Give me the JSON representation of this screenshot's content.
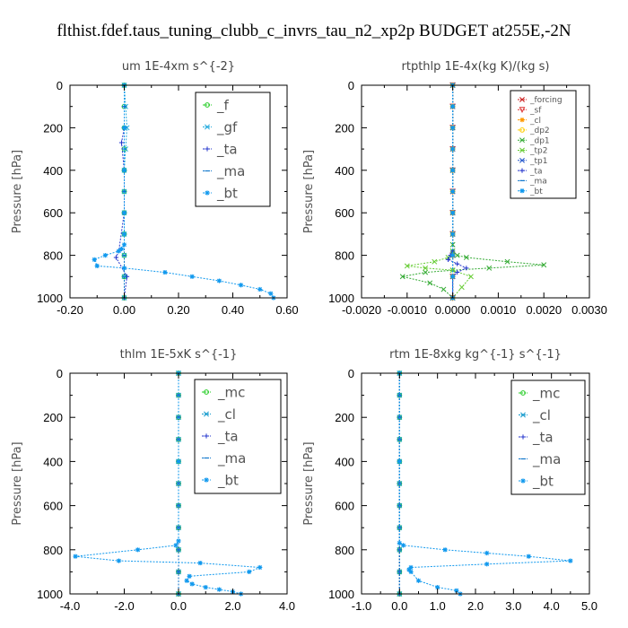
{
  "title": "flthist.fdef.taus_tuning_clubb_c_invrs_tau_n2_xp2p  BUDGET at255E,-2N",
  "chart_data": [
    {
      "type": "line",
      "title": "um  1E-4xm s^{-2}",
      "ylabel": "Pressure [hPa]",
      "xlim": [
        -0.2,
        0.6
      ],
      "ylim": [
        1000,
        0
      ],
      "xticks": [
        "-0.20",
        "0.00",
        "0.20",
        "0.40",
        "0.60"
      ],
      "yticks": [
        "0",
        "200",
        "400",
        "600",
        "800",
        "1000"
      ],
      "legend_position": "top-right",
      "series": [
        {
          "name": "_f",
          "color": "#22cc22",
          "marker": "o",
          "x": [
            0.0,
            0.0,
            0.0,
            0.0,
            0.0,
            0.0,
            0.0,
            0.0,
            0.0,
            0.0,
            0.0
          ],
          "y": [
            0,
            100,
            200,
            300,
            400,
            500,
            600,
            700,
            800,
            900,
            1000
          ]
        },
        {
          "name": "_gf",
          "color": "#22aadd",
          "marker": "x",
          "x": [
            0.0,
            0.005,
            0.01,
            0.005,
            0.0,
            0.0,
            0.0,
            0.0,
            0.0,
            0.0,
            0.0
          ],
          "y": [
            0,
            100,
            200,
            300,
            400,
            500,
            600,
            700,
            800,
            900,
            1000
          ]
        },
        {
          "name": "_ta",
          "color": "#2233cc",
          "marker": "+",
          "x": [
            0.0,
            0.0,
            0.0,
            -0.01,
            0.0,
            0.0,
            0.0,
            -0.02,
            -0.03,
            0.01,
            0.0
          ],
          "y": [
            0,
            100,
            200,
            270,
            400,
            500,
            600,
            780,
            810,
            900,
            1000
          ]
        },
        {
          "name": "_ma",
          "color": "#1177cc",
          "marker": "-",
          "x": [
            0.0,
            0.0,
            0.0,
            0.0,
            0.0,
            0.0,
            0.0,
            0.0,
            0.0,
            0.0,
            0.0
          ],
          "y": [
            0,
            100,
            200,
            300,
            400,
            500,
            600,
            700,
            800,
            900,
            1000
          ]
        },
        {
          "name": "_bt",
          "color": "#1199ee",
          "marker": "*",
          "x": [
            0.0,
            0.0,
            0.0,
            0.0,
            0.0,
            0.0,
            -0.01,
            -0.02,
            -0.07,
            -0.11,
            -0.1,
            0.0,
            0.15,
            0.25,
            0.35,
            0.43,
            0.5,
            0.54,
            0.55
          ],
          "y": [
            0,
            200,
            400,
            600,
            700,
            750,
            770,
            780,
            800,
            820,
            850,
            860,
            880,
            900,
            920,
            940,
            960,
            980,
            1000
          ]
        }
      ]
    },
    {
      "type": "line",
      "title": "rtpthlp  1E-4x(kg K)/(kg s)",
      "ylabel": "Pressure [hPa]",
      "xlim": [
        -0.002,
        0.003
      ],
      "ylim": [
        1000,
        0
      ],
      "xticks": [
        "-0.0020",
        "-0.0010",
        "0.0000",
        "0.0010",
        "0.0020",
        "0.0030"
      ],
      "yticks": [
        "0",
        "200",
        "400",
        "600",
        "800",
        "1000"
      ],
      "legend_position": "top-right",
      "series": [
        {
          "name": "_forcing",
          "color": "#cc2222",
          "marker": "x",
          "x": [
            0,
            0,
            0,
            0,
            0,
            0,
            0,
            0,
            0,
            0,
            0
          ],
          "y": [
            0,
            100,
            200,
            300,
            400,
            500,
            600,
            700,
            800,
            900,
            1000
          ]
        },
        {
          "name": "_sf",
          "color": "#dd3333",
          "marker": "v",
          "x": [
            0,
            0,
            0,
            0,
            0,
            0,
            0,
            0,
            0,
            0,
            0
          ],
          "y": [
            0,
            100,
            200,
            300,
            400,
            500,
            600,
            700,
            800,
            900,
            1000
          ]
        },
        {
          "name": "_cl",
          "color": "#ff9900",
          "marker": "*",
          "x": [
            0,
            0,
            0,
            0,
            0,
            0,
            0,
            0,
            0,
            0,
            0
          ],
          "y": [
            0,
            100,
            200,
            300,
            400,
            500,
            600,
            700,
            800,
            900,
            1000
          ]
        },
        {
          "name": "_dp2",
          "color": "#ffcc00",
          "marker": "o",
          "x": [
            0,
            0,
            0,
            0,
            0,
            0,
            0,
            0,
            0,
            0,
            0
          ],
          "y": [
            0,
            100,
            200,
            300,
            400,
            500,
            600,
            700,
            800,
            900,
            1000
          ]
        },
        {
          "name": "_dp1",
          "color": "#33aa33",
          "marker": "x",
          "x": [
            0.0,
            0.0,
            0.0,
            0.0,
            0.0,
            0.0,
            0.0,
            0.0001,
            0.0003,
            0.0012,
            0.002,
            0.0008,
            0.0,
            -0.0006,
            -0.0011,
            -0.0005,
            -0.0002,
            0.0
          ],
          "y": [
            0,
            200,
            400,
            600,
            700,
            750,
            780,
            800,
            810,
            830,
            845,
            860,
            870,
            880,
            900,
            930,
            960,
            1000
          ]
        },
        {
          "name": "_tp2",
          "color": "#66cc33",
          "marker": "x",
          "x": [
            0.0,
            0.0,
            0.0,
            0.0,
            -0.0001,
            -0.0004,
            -0.001,
            -0.0006,
            0.0,
            0.0004,
            0.0002,
            0.0
          ],
          "y": [
            0,
            400,
            700,
            790,
            810,
            830,
            850,
            860,
            870,
            900,
            950,
            1000
          ]
        },
        {
          "name": "_tp1",
          "color": "#2255cc",
          "marker": "x",
          "x": [
            0,
            0,
            0,
            0,
            0,
            0,
            0,
            0,
            0,
            0,
            0
          ],
          "y": [
            0,
            100,
            200,
            300,
            400,
            500,
            600,
            700,
            800,
            900,
            1000
          ]
        },
        {
          "name": "_ta",
          "color": "#2233cc",
          "marker": "+",
          "x": [
            0.0,
            0.0,
            0.0,
            -5e-05,
            -0.0001,
            0.0001,
            0.0003,
            0.0001,
            0.0,
            0.0
          ],
          "y": [
            0,
            400,
            780,
            800,
            820,
            840,
            860,
            880,
            900,
            1000
          ]
        },
        {
          "name": "_ma",
          "color": "#1177cc",
          "marker": "-",
          "x": [
            0,
            0,
            0,
            0,
            0,
            0,
            0,
            0,
            0,
            0,
            0
          ],
          "y": [
            0,
            100,
            200,
            300,
            400,
            500,
            600,
            700,
            800,
            900,
            1000
          ]
        },
        {
          "name": "_bt",
          "color": "#1199ee",
          "marker": "*",
          "x": [
            0,
            0,
            0,
            0,
            0,
            0,
            0,
            0,
            0,
            0,
            0
          ],
          "y": [
            0,
            100,
            200,
            300,
            400,
            500,
            600,
            700,
            800,
            900,
            1000
          ]
        }
      ]
    },
    {
      "type": "line",
      "title": "thlm  1E-5xK s^{-1}",
      "ylabel": "Pressure [hPa]",
      "xlim": [
        -4.0,
        4.0
      ],
      "ylim": [
        1000,
        0
      ],
      "xticks": [
        "-4.0",
        "-2.0",
        "0.0",
        "2.0",
        "4.0"
      ],
      "yticks": [
        "0",
        "200",
        "400",
        "600",
        "800",
        "1000"
      ],
      "legend_position": "top-right",
      "series": [
        {
          "name": "_mc",
          "color": "#22cc22",
          "marker": "o",
          "x": [
            0,
            0,
            0,
            0,
            0,
            0,
            0,
            0,
            0,
            0,
            0
          ],
          "y": [
            0,
            100,
            200,
            300,
            400,
            500,
            600,
            700,
            800,
            900,
            1000
          ]
        },
        {
          "name": "_cl",
          "color": "#1199cc",
          "marker": "x",
          "x": [
            0,
            0,
            0,
            0,
            0,
            0,
            0,
            0,
            0,
            0,
            0
          ],
          "y": [
            0,
            100,
            200,
            300,
            400,
            500,
            600,
            700,
            800,
            900,
            1000
          ]
        },
        {
          "name": "_ta",
          "color": "#2233cc",
          "marker": "+",
          "x": [
            0,
            0,
            0,
            0,
            0,
            0,
            0,
            0,
            0,
            0,
            0
          ],
          "y": [
            0,
            100,
            200,
            300,
            400,
            500,
            600,
            700,
            800,
            900,
            1000
          ]
        },
        {
          "name": "_ma",
          "color": "#1177cc",
          "marker": "-",
          "x": [
            0,
            0,
            0,
            0,
            0,
            0,
            0,
            0,
            0,
            0,
            0
          ],
          "y": [
            0,
            100,
            200,
            300,
            400,
            500,
            600,
            700,
            800,
            900,
            1000
          ]
        },
        {
          "name": "_bt",
          "color": "#1199ee",
          "marker": "*",
          "x": [
            0.0,
            0.0,
            0.0,
            -0.1,
            -1.5,
            -3.8,
            -2.2,
            0.8,
            3.0,
            2.6,
            0.4,
            0.3,
            0.5,
            1.0,
            1.5,
            2.0,
            2.3
          ],
          "y": [
            0,
            400,
            760,
            780,
            800,
            830,
            850,
            860,
            880,
            900,
            920,
            940,
            955,
            970,
            980,
            990,
            1000
          ]
        }
      ]
    },
    {
      "type": "line",
      "title": "rtm  1E-8xkg kg^{-1} s^{-1}",
      "ylabel": "Pressure [hPa]",
      "xlim": [
        -1.0,
        5.0
      ],
      "ylim": [
        1000,
        0
      ],
      "xticks": [
        "-1.0",
        "0.0",
        "1.0",
        "2.0",
        "3.0",
        "4.0",
        "5.0"
      ],
      "yticks": [
        "0",
        "200",
        "400",
        "600",
        "800",
        "1000"
      ],
      "legend_position": "top-right",
      "series": [
        {
          "name": "_mc",
          "color": "#22cc22",
          "marker": "o",
          "x": [
            0,
            0,
            0,
            0,
            0,
            0,
            0,
            0,
            0,
            0,
            0
          ],
          "y": [
            0,
            100,
            200,
            300,
            400,
            500,
            600,
            700,
            800,
            900,
            1000
          ]
        },
        {
          "name": "_cl",
          "color": "#1199cc",
          "marker": "x",
          "x": [
            0,
            0,
            0,
            0,
            0,
            0,
            0,
            0,
            0,
            0,
            0
          ],
          "y": [
            0,
            100,
            200,
            300,
            400,
            500,
            600,
            700,
            800,
            900,
            1000
          ]
        },
        {
          "name": "_ta",
          "color": "#2233cc",
          "marker": "+",
          "x": [
            0,
            0,
            0,
            0,
            0,
            0,
            0,
            0,
            0,
            0,
            0
          ],
          "y": [
            0,
            100,
            200,
            300,
            400,
            500,
            600,
            700,
            800,
            900,
            1000
          ]
        },
        {
          "name": "_ma",
          "color": "#1177cc",
          "marker": "-",
          "x": [
            0,
            0,
            0,
            0,
            0,
            0,
            0,
            0,
            0,
            0,
            0
          ],
          "y": [
            0,
            100,
            200,
            300,
            400,
            500,
            600,
            700,
            800,
            900,
            1000
          ]
        },
        {
          "name": "_bt",
          "color": "#1199ee",
          "marker": "*",
          "x": [
            0.0,
            0.0,
            0.0,
            0.1,
            1.2,
            2.3,
            3.4,
            4.5,
            2.3,
            0.3,
            0.25,
            0.3,
            0.5,
            1.0,
            1.5,
            1.6
          ],
          "y": [
            0,
            400,
            770,
            780,
            800,
            815,
            830,
            850,
            865,
            880,
            890,
            900,
            940,
            970,
            985,
            1000
          ]
        }
      ]
    }
  ]
}
